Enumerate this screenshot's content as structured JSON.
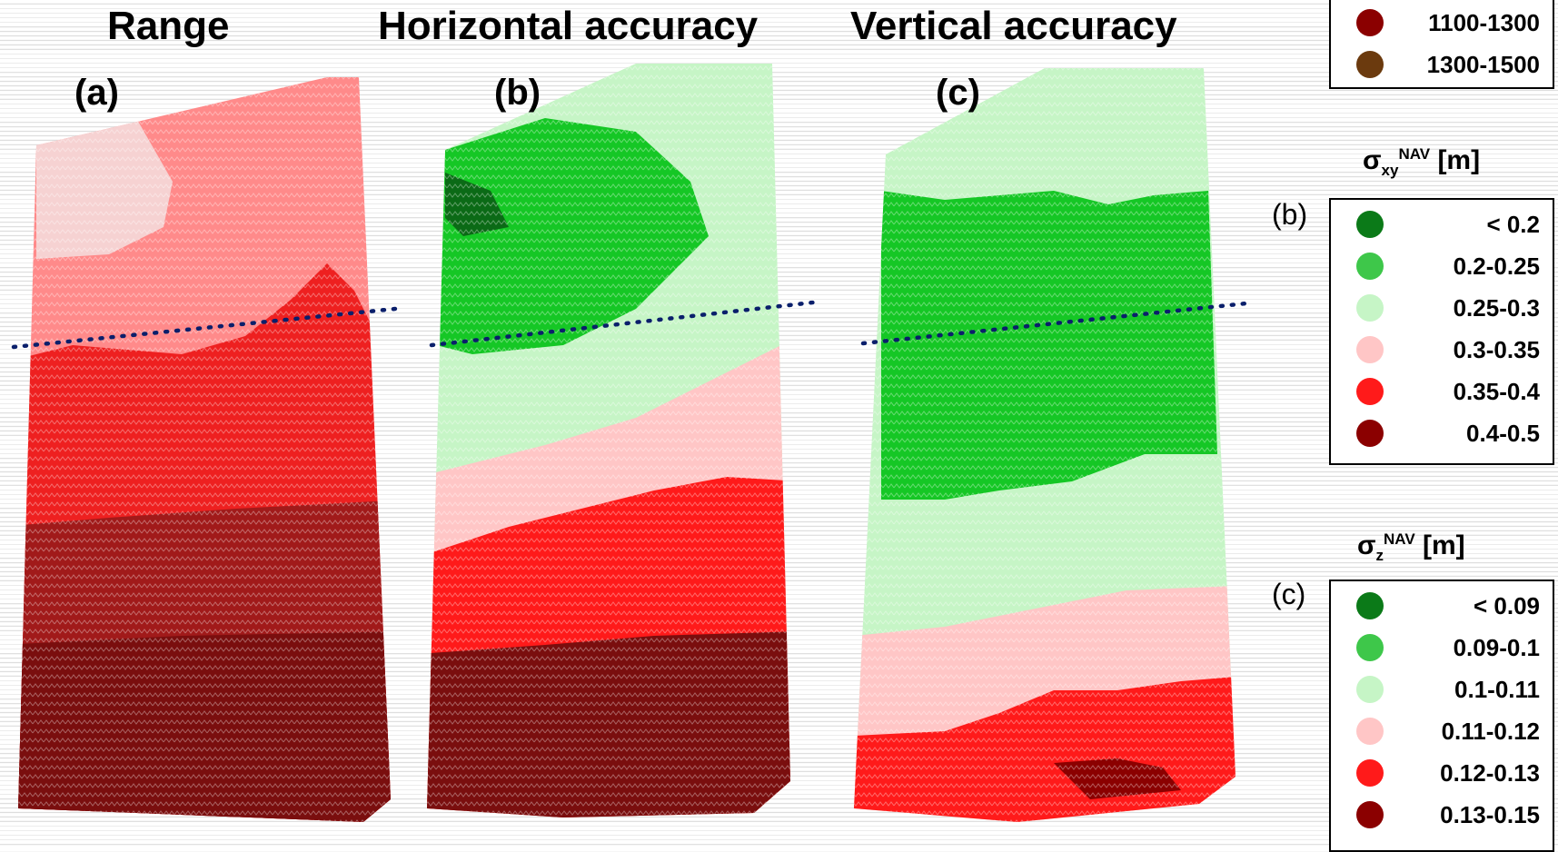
{
  "panels": [
    {
      "title": "Range",
      "label": "(a)"
    },
    {
      "title": "Horizontal accuracy",
      "label": "(b)"
    },
    {
      "title": "Vertical accuracy",
      "label": "(c)"
    }
  ],
  "legend_range": {
    "items": [
      {
        "label": "1100-1300",
        "color": "#8b0000"
      },
      {
        "label": "1300-1500",
        "color": "#6b3a0e"
      }
    ]
  },
  "legend_xy": {
    "sigma": "σ",
    "sub": "xy",
    "sup": "NAV",
    "unit": "[m]",
    "side_label": "(b)",
    "items": [
      {
        "label": "< 0.2",
        "color": "#0b7a18"
      },
      {
        "label": "0.2-0.25",
        "color": "#3ec74a"
      },
      {
        "label": "0.25-0.3",
        "color": "#c6f5c6"
      },
      {
        "label": "0.3-0.35",
        "color": "#ffc6c6"
      },
      {
        "label": "0.35-0.4",
        "color": "#ff1a1a"
      },
      {
        "label": "0.4-0.5",
        "color": "#8b0000"
      }
    ]
  },
  "legend_z": {
    "sigma": "σ",
    "sub": "z",
    "sup": "NAV",
    "unit": "[m]",
    "side_label": "(c)",
    "items": [
      {
        "label": "< 0.09",
        "color": "#0b7a18"
      },
      {
        "label": "0.09-0.1",
        "color": "#3ec74a"
      },
      {
        "label": "0.1-0.11",
        "color": "#c6f5c6"
      },
      {
        "label": "0.11-0.12",
        "color": "#ffc6c6"
      },
      {
        "label": "0.12-0.13",
        "color": "#ff1a1a"
      },
      {
        "label": "0.13-0.15",
        "color": "#8b0000"
      }
    ]
  }
}
